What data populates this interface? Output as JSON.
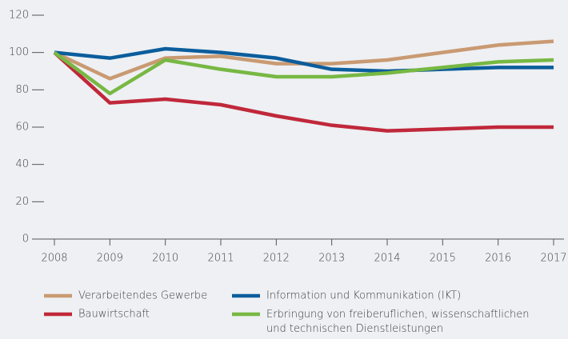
{
  "chart_data": {
    "type": "line",
    "x": [
      2008,
      2009,
      2010,
      2011,
      2012,
      2013,
      2014,
      2015,
      2016,
      2017
    ],
    "series": [
      {
        "name": "Verarbeitendes Gewerbe",
        "color": "#c99a72",
        "values": [
          100,
          86,
          97,
          98,
          94,
          94,
          96,
          100,
          104,
          106
        ]
      },
      {
        "name": "Bauwirtschaft",
        "color": "#c0283a",
        "values": [
          100,
          73,
          75,
          72,
          66,
          61,
          58,
          59,
          60,
          60
        ]
      },
      {
        "name": "Information und Kommunikation (IKT)",
        "color": "#0b5d9c",
        "values": [
          100,
          97,
          102,
          100,
          97,
          91,
          90,
          91,
          92,
          92
        ]
      },
      {
        "name": "Erbringung von freiberuflichen, wissenschaftlichen\nund technischen Dienstleistungen",
        "color": "#77b843",
        "values": [
          100,
          78,
          96,
          91,
          87,
          87,
          89,
          92,
          95,
          96
        ]
      }
    ],
    "xlim": [
      2008,
      2017
    ],
    "xticks": [
      2008,
      2009,
      2010,
      2011,
      2012,
      2013,
      2014,
      2015,
      2016,
      2017
    ],
    "ylim": [
      0,
      120
    ],
    "yticks": [
      0,
      20,
      40,
      60,
      80,
      100,
      120
    ],
    "grid": false
  }
}
